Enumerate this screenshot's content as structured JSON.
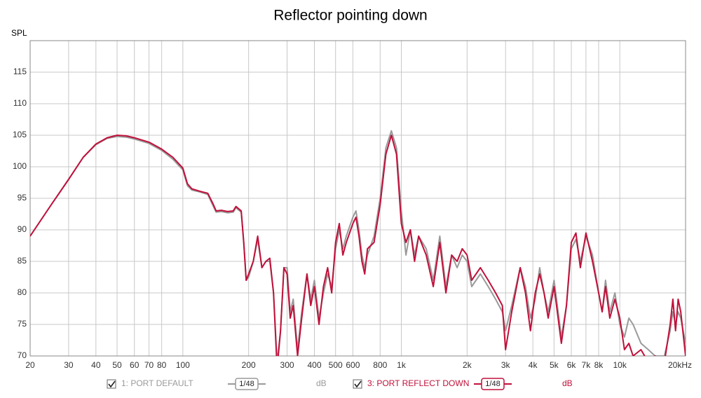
{
  "chart_data": {
    "type": "line",
    "title": "Reflector pointing down",
    "y_label": "SPL",
    "xscale": "log",
    "grid": true,
    "x": [
      20,
      25,
      30,
      35,
      40,
      45,
      50,
      55,
      60,
      70,
      80,
      90,
      100,
      105,
      110,
      120,
      130,
      138,
      142,
      150,
      160,
      170,
      175,
      185,
      190,
      195,
      200,
      210,
      220,
      230,
      240,
      250,
      260,
      270,
      280,
      290,
      300,
      310,
      320,
      335,
      350,
      370,
      385,
      400,
      420,
      440,
      460,
      480,
      500,
      520,
      540,
      560,
      600,
      620,
      640,
      660,
      680,
      700,
      750,
      800,
      850,
      900,
      950,
      1000,
      1050,
      1100,
      1150,
      1200,
      1300,
      1400,
      1500,
      1600,
      1700,
      1800,
      1900,
      2000,
      2100,
      2300,
      2500,
      2700,
      2900,
      3000,
      3200,
      3500,
      3700,
      3900,
      4100,
      4300,
      4500,
      4700,
      5000,
      5400,
      5700,
      6000,
      6300,
      6600,
      7000,
      7500,
      8000,
      8300,
      8600,
      9000,
      9500,
      10000,
      10500,
      11000,
      11500,
      12500,
      13500,
      14500,
      16000,
      17000,
      17500,
      18000,
      18500,
      19000,
      20000
    ],
    "series": [
      {
        "name": "1: PORT DEFAULT",
        "color": "#9a9a9a",
        "smoothing": "1/48",
        "unit": "dB",
        "values": [
          89,
          94,
          98,
          101.5,
          103.5,
          104.5,
          104.8,
          104.7,
          104.4,
          103.7,
          102.6,
          101.2,
          99.5,
          97,
          96.3,
          96,
          95.6,
          93.7,
          92.8,
          92.9,
          92.7,
          92.8,
          93.5,
          92.8,
          88,
          82,
          82.5,
          85,
          88.5,
          84,
          85,
          85,
          80,
          69,
          74,
          84,
          84,
          77,
          79,
          71,
          77,
          83,
          79,
          82,
          76,
          80,
          83,
          81,
          87,
          90,
          87,
          89,
          92,
          93,
          90,
          86,
          84,
          86,
          89,
          95,
          103,
          105.7,
          103,
          93,
          86,
          90,
          86,
          89,
          87,
          82,
          89,
          81,
          86,
          84,
          86,
          85,
          81,
          83,
          81,
          79,
          77,
          74,
          78,
          84,
          81,
          76,
          79,
          84,
          80,
          77,
          82,
          73,
          78,
          87,
          88.5,
          85,
          89,
          86,
          80,
          77,
          82,
          77,
          80,
          75,
          73,
          76,
          75,
          72,
          71,
          70,
          70,
          74,
          77,
          75,
          77,
          76,
          72
        ]
      },
      {
        "name": "3: PORT REFLECT DOWN",
        "color": "#c0103a",
        "smoothing": "1/48",
        "unit": "dB",
        "values": [
          89,
          94,
          98,
          101.5,
          103.6,
          104.6,
          105,
          104.9,
          104.6,
          103.9,
          102.8,
          101.5,
          99.8,
          97.3,
          96.5,
          96.1,
          95.8,
          94,
          93,
          93.1,
          92.9,
          93,
          93.7,
          93,
          88,
          82,
          83,
          85,
          89,
          84,
          85,
          85.5,
          80,
          68,
          74,
          84,
          83,
          76,
          78,
          70,
          76,
          83,
          78,
          81,
          75,
          81,
          84,
          80,
          88,
          91,
          86,
          88,
          91,
          92,
          89,
          85,
          83,
          87,
          88,
          94,
          102,
          105,
          102,
          91,
          88,
          90,
          85,
          89,
          86,
          81,
          88,
          80,
          86,
          85,
          87,
          86,
          82,
          84,
          82,
          80,
          78,
          71,
          77,
          84,
          80,
          74,
          80,
          83,
          80,
          76,
          81,
          72,
          78,
          88,
          89.5,
          84,
          89.5,
          85,
          80,
          77,
          81,
          76,
          79,
          76,
          71,
          72,
          70,
          71,
          69,
          70,
          69,
          75,
          79,
          74,
          79,
          77,
          70
        ]
      }
    ],
    "xlim": [
      20,
      20000
    ],
    "ylim": [
      70,
      120
    ],
    "xticks": [
      20,
      30,
      40,
      50,
      60,
      70,
      80,
      100,
      200,
      300,
      400,
      500,
      600,
      800,
      {
        "value": 1000,
        "label": "1k"
      },
      {
        "value": 2000,
        "label": "2k"
      },
      {
        "value": 3000,
        "label": "3k"
      },
      {
        "value": 4000,
        "label": "4k"
      },
      {
        "value": 5000,
        "label": "5k"
      },
      {
        "value": 6000,
        "label": "6k"
      },
      {
        "value": 7000,
        "label": "7k"
      },
      {
        "value": 8000,
        "label": "8k"
      },
      {
        "value": 10000,
        "label": "10k"
      },
      {
        "value": 20000,
        "label": "20kHz"
      }
    ],
    "yticks": [
      70,
      75,
      80,
      85,
      90,
      95,
      100,
      105,
      110,
      115
    ]
  }
}
